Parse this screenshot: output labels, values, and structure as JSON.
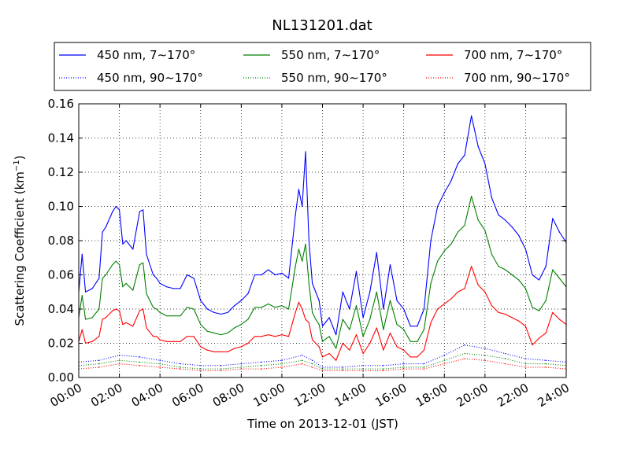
{
  "chart_data": {
    "type": "line",
    "title": "NL131201.dat",
    "xlabel": "Time on 2013-12-01 (JST)",
    "ylabel_main": "Scattering Coefficient (km",
    "ylabel_sup": "−1",
    "ylabel_close": ")",
    "xlim": [
      "00:00",
      "24:00"
    ],
    "ylim": [
      0,
      0.16
    ],
    "x_ticks": [
      "00:00",
      "02:00",
      "04:00",
      "06:00",
      "08:00",
      "10:00",
      "12:00",
      "14:00",
      "16:00",
      "18:00",
      "20:00",
      "22:00",
      "24:00"
    ],
    "y_ticks": [
      "0.00",
      "0.02",
      "0.04",
      "0.06",
      "0.08",
      "0.10",
      "0.12",
      "0.14",
      "0.16"
    ],
    "grid": true,
    "legend_position": "top",
    "series": [
      {
        "name": "450 nm, 7∼170°",
        "color": "#0000ff",
        "style": "solid",
        "times": [
          "00:00",
          "00:10",
          "00:20",
          "00:40",
          "01:00",
          "01:10",
          "01:20",
          "01:40",
          "01:50",
          "02:00",
          "02:10",
          "02:20",
          "02:40",
          "03:00",
          "03:10",
          "03:20",
          "03:40",
          "03:50",
          "04:00",
          "04:20",
          "04:40",
          "05:00",
          "05:20",
          "05:40",
          "06:00",
          "06:20",
          "06:40",
          "07:00",
          "07:20",
          "07:40",
          "08:00",
          "08:20",
          "08:40",
          "09:00",
          "09:20",
          "09:40",
          "10:00",
          "10:20",
          "10:40",
          "10:50",
          "11:00",
          "11:10",
          "11:20",
          "11:30",
          "11:40",
          "11:50",
          "12:00",
          "12:20",
          "12:40",
          "13:00",
          "13:20",
          "13:40",
          "14:00",
          "14:20",
          "14:40",
          "15:00",
          "15:20",
          "15:40",
          "16:00",
          "16:20",
          "16:40",
          "17:00",
          "17:20",
          "17:40",
          "18:00",
          "18:20",
          "18:40",
          "19:00",
          "19:20",
          "19:40",
          "20:00",
          "20:20",
          "20:40",
          "21:00",
          "21:20",
          "21:40",
          "22:00",
          "22:20",
          "22:40",
          "23:00",
          "23:20",
          "23:40",
          "24:00"
        ],
        "values": [
          0.05,
          0.072,
          0.05,
          0.052,
          0.058,
          0.085,
          0.088,
          0.097,
          0.1,
          0.098,
          0.078,
          0.08,
          0.075,
          0.097,
          0.098,
          0.072,
          0.06,
          0.058,
          0.055,
          0.053,
          0.052,
          0.052,
          0.06,
          0.058,
          0.045,
          0.04,
          0.038,
          0.037,
          0.038,
          0.042,
          0.045,
          0.049,
          0.06,
          0.06,
          0.063,
          0.06,
          0.061,
          0.058,
          0.095,
          0.11,
          0.1,
          0.132,
          0.08,
          0.055,
          0.05,
          0.045,
          0.03,
          0.035,
          0.025,
          0.05,
          0.04,
          0.062,
          0.035,
          0.05,
          0.073,
          0.04,
          0.066,
          0.045,
          0.04,
          0.03,
          0.03,
          0.04,
          0.08,
          0.1,
          0.108,
          0.115,
          0.125,
          0.13,
          0.153,
          0.135,
          0.125,
          0.105,
          0.095,
          0.092,
          0.088,
          0.083,
          0.075,
          0.06,
          0.057,
          0.065,
          0.093,
          0.085,
          0.079
        ]
      },
      {
        "name": "550 nm, 7∼170°",
        "color": "#008000",
        "style": "solid",
        "times": [
          "00:00",
          "00:10",
          "00:20",
          "00:40",
          "01:00",
          "01:10",
          "01:20",
          "01:40",
          "01:50",
          "02:00",
          "02:10",
          "02:20",
          "02:40",
          "03:00",
          "03:10",
          "03:20",
          "03:40",
          "03:50",
          "04:00",
          "04:20",
          "04:40",
          "05:00",
          "05:20",
          "05:40",
          "06:00",
          "06:20",
          "06:40",
          "07:00",
          "07:20",
          "07:40",
          "08:00",
          "08:20",
          "08:40",
          "09:00",
          "09:20",
          "09:40",
          "10:00",
          "10:20",
          "10:40",
          "10:50",
          "11:00",
          "11:10",
          "11:20",
          "11:30",
          "11:40",
          "11:50",
          "12:00",
          "12:20",
          "12:40",
          "13:00",
          "13:20",
          "13:40",
          "14:00",
          "14:20",
          "14:40",
          "15:00",
          "15:20",
          "15:40",
          "16:00",
          "16:20",
          "16:40",
          "17:00",
          "17:20",
          "17:40",
          "18:00",
          "18:20",
          "18:40",
          "19:00",
          "19:20",
          "19:40",
          "20:00",
          "20:20",
          "20:40",
          "21:00",
          "21:20",
          "21:40",
          "22:00",
          "22:20",
          "22:40",
          "23:00",
          "23:20",
          "23:40",
          "24:00"
        ],
        "values": [
          0.035,
          0.048,
          0.034,
          0.035,
          0.04,
          0.058,
          0.06,
          0.066,
          0.068,
          0.066,
          0.053,
          0.055,
          0.051,
          0.066,
          0.067,
          0.049,
          0.041,
          0.04,
          0.038,
          0.036,
          0.036,
          0.036,
          0.041,
          0.04,
          0.031,
          0.027,
          0.026,
          0.025,
          0.026,
          0.029,
          0.031,
          0.034,
          0.041,
          0.041,
          0.043,
          0.041,
          0.042,
          0.04,
          0.065,
          0.075,
          0.068,
          0.078,
          0.055,
          0.038,
          0.034,
          0.031,
          0.021,
          0.024,
          0.017,
          0.034,
          0.028,
          0.042,
          0.024,
          0.034,
          0.05,
          0.028,
          0.045,
          0.031,
          0.028,
          0.021,
          0.021,
          0.028,
          0.055,
          0.068,
          0.074,
          0.078,
          0.085,
          0.089,
          0.106,
          0.092,
          0.086,
          0.072,
          0.065,
          0.063,
          0.06,
          0.057,
          0.052,
          0.041,
          0.039,
          0.045,
          0.063,
          0.058,
          0.053
        ]
      },
      {
        "name": "700 nm, 7∼170°",
        "color": "#ff0000",
        "style": "solid",
        "times": [
          "00:00",
          "00:10",
          "00:20",
          "00:40",
          "01:00",
          "01:10",
          "01:20",
          "01:40",
          "01:50",
          "02:00",
          "02:10",
          "02:20",
          "02:40",
          "03:00",
          "03:10",
          "03:20",
          "03:40",
          "03:50",
          "04:00",
          "04:20",
          "04:40",
          "05:00",
          "05:20",
          "05:40",
          "06:00",
          "06:20",
          "06:40",
          "07:00",
          "07:20",
          "07:40",
          "08:00",
          "08:20",
          "08:40",
          "09:00",
          "09:20",
          "09:40",
          "10:00",
          "10:20",
          "10:40",
          "10:50",
          "11:00",
          "11:10",
          "11:20",
          "11:30",
          "11:40",
          "11:50",
          "12:00",
          "12:20",
          "12:40",
          "13:00",
          "13:20",
          "13:40",
          "14:00",
          "14:20",
          "14:40",
          "15:00",
          "15:20",
          "15:40",
          "16:00",
          "16:20",
          "16:40",
          "17:00",
          "17:20",
          "17:40",
          "18:00",
          "18:20",
          "18:40",
          "19:00",
          "19:20",
          "19:40",
          "20:00",
          "20:20",
          "20:40",
          "21:00",
          "21:20",
          "21:40",
          "22:00",
          "22:20",
          "22:40",
          "23:00",
          "23:20",
          "23:40",
          "24:00"
        ],
        "values": [
          0.021,
          0.028,
          0.02,
          0.021,
          0.024,
          0.034,
          0.035,
          0.039,
          0.04,
          0.039,
          0.031,
          0.032,
          0.03,
          0.039,
          0.04,
          0.029,
          0.024,
          0.024,
          0.022,
          0.021,
          0.021,
          0.021,
          0.024,
          0.024,
          0.018,
          0.016,
          0.015,
          0.015,
          0.015,
          0.017,
          0.018,
          0.02,
          0.024,
          0.024,
          0.025,
          0.024,
          0.025,
          0.024,
          0.038,
          0.044,
          0.04,
          0.034,
          0.032,
          0.022,
          0.02,
          0.018,
          0.012,
          0.014,
          0.01,
          0.02,
          0.016,
          0.025,
          0.014,
          0.02,
          0.029,
          0.016,
          0.026,
          0.018,
          0.016,
          0.012,
          0.012,
          0.016,
          0.032,
          0.04,
          0.043,
          0.046,
          0.05,
          0.052,
          0.065,
          0.054,
          0.05,
          0.042,
          0.038,
          0.037,
          0.035,
          0.033,
          0.03,
          0.019,
          0.023,
          0.026,
          0.038,
          0.034,
          0.031
        ]
      },
      {
        "name": "450 nm, 90∼170°",
        "color": "#0000ff",
        "style": "dotted",
        "times": [
          "00:00",
          "01:00",
          "02:00",
          "03:00",
          "04:00",
          "05:00",
          "06:00",
          "07:00",
          "08:00",
          "09:00",
          "10:00",
          "11:00",
          "11:30",
          "12:00",
          "13:00",
          "14:00",
          "15:00",
          "16:00",
          "17:00",
          "18:00",
          "19:00",
          "20:00",
          "21:00",
          "22:00",
          "23:00",
          "24:00"
        ],
        "values": [
          0.009,
          0.01,
          0.013,
          0.012,
          0.01,
          0.008,
          0.007,
          0.007,
          0.008,
          0.009,
          0.01,
          0.013,
          0.01,
          0.006,
          0.006,
          0.007,
          0.007,
          0.008,
          0.008,
          0.013,
          0.019,
          0.017,
          0.014,
          0.011,
          0.01,
          0.009
        ]
      },
      {
        "name": "550 nm, 90∼170°",
        "color": "#008000",
        "style": "dotted",
        "times": [
          "00:00",
          "01:00",
          "02:00",
          "03:00",
          "04:00",
          "05:00",
          "06:00",
          "07:00",
          "08:00",
          "09:00",
          "10:00",
          "11:00",
          "11:30",
          "12:00",
          "13:00",
          "14:00",
          "15:00",
          "16:00",
          "17:00",
          "18:00",
          "19:00",
          "20:00",
          "21:00",
          "22:00",
          "23:00",
          "24:00"
        ],
        "values": [
          0.007,
          0.008,
          0.01,
          0.009,
          0.008,
          0.006,
          0.005,
          0.005,
          0.006,
          0.007,
          0.008,
          0.01,
          0.008,
          0.005,
          0.005,
          0.005,
          0.005,
          0.006,
          0.006,
          0.01,
          0.014,
          0.013,
          0.011,
          0.008,
          0.008,
          0.007
        ]
      },
      {
        "name": "700 nm, 90∼170°",
        "color": "#ff0000",
        "style": "dotted",
        "times": [
          "00:00",
          "01:00",
          "02:00",
          "03:00",
          "04:00",
          "05:00",
          "06:00",
          "07:00",
          "08:00",
          "09:00",
          "10:00",
          "11:00",
          "11:30",
          "12:00",
          "13:00",
          "14:00",
          "15:00",
          "16:00",
          "17:00",
          "18:00",
          "19:00",
          "20:00",
          "21:00",
          "22:00",
          "23:00",
          "24:00"
        ],
        "values": [
          0.005,
          0.006,
          0.008,
          0.007,
          0.006,
          0.005,
          0.004,
          0.004,
          0.005,
          0.005,
          0.006,
          0.008,
          0.006,
          0.004,
          0.004,
          0.004,
          0.004,
          0.005,
          0.005,
          0.008,
          0.011,
          0.01,
          0.008,
          0.006,
          0.006,
          0.005
        ]
      }
    ]
  }
}
